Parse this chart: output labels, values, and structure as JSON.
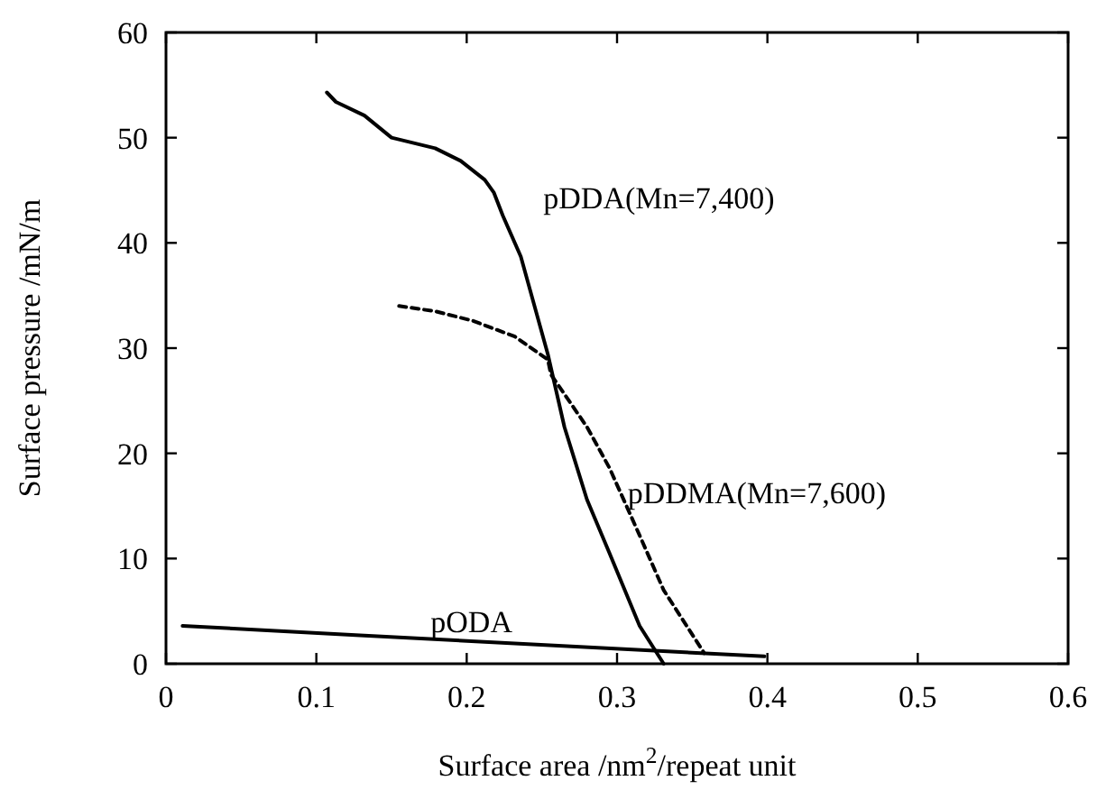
{
  "chart_data": {
    "type": "line",
    "xlabel": "Surface area /nm$^{2}$/repeat unit",
    "ylabel": "Surface pressure /mN/m",
    "xlim": [
      0,
      0.6
    ],
    "ylim": [
      0,
      60
    ],
    "xticks": [
      0,
      0.1,
      0.2,
      0.3,
      0.4,
      0.5,
      0.6
    ],
    "yticks": [
      0,
      10,
      20,
      30,
      40,
      50,
      60
    ],
    "grid": false,
    "marker": "none",
    "series": [
      {
        "name": "pDDA(Mn=7,400)",
        "color": "#000000",
        "line_style": "solid",
        "x": [
          0.107,
          0.113,
          0.132,
          0.15,
          0.179,
          0.196,
          0.212,
          0.218,
          0.224,
          0.236,
          0.254,
          0.265,
          0.28,
          0.295,
          0.315,
          0.331
        ],
        "values": [
          54.3,
          53.4,
          52.1,
          50,
          49,
          47.8,
          46,
          44.8,
          42.6,
          38.7,
          29.4,
          22.5,
          15.6,
          10.5,
          3.6,
          0
        ]
      },
      {
        "name": "pDDMA(Mn=7,600)",
        "color": "#000000",
        "line_style": "dashed",
        "x": [
          0.155,
          0.179,
          0.204,
          0.232,
          0.254,
          0.256,
          0.28,
          0.295,
          0.315,
          0.331,
          0.358
        ],
        "values": [
          34,
          33.5,
          32.6,
          31.1,
          28.9,
          27.5,
          22.5,
          18.6,
          12.2,
          7,
          1
        ]
      },
      {
        "name": "pODA",
        "color": "#000000",
        "line_style": "solid",
        "x": [
          0.011,
          0.129,
          0.398
        ],
        "values": [
          3.6,
          2.7,
          0.7
        ]
      }
    ]
  }
}
